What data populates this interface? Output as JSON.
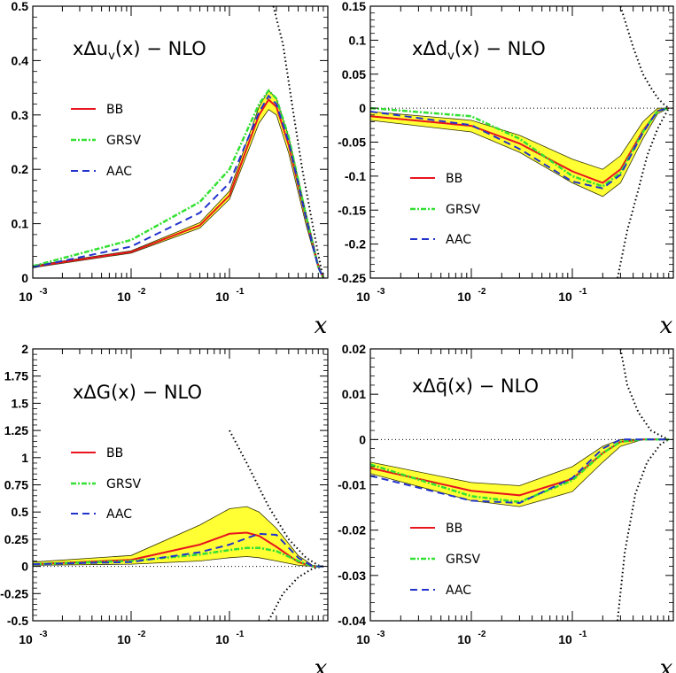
{
  "chart_data": [
    {
      "type": "line",
      "title": "xΔu_v(x) − NLO",
      "title_main": "xΔu",
      "title_sub": "v",
      "title_tail": "(x) − NLO",
      "xlabel": "x",
      "xscale": "log",
      "xlim": [
        0.001,
        1
      ],
      "ylim": [
        0,
        0.5
      ],
      "yticks": [
        "0",
        "0.1",
        "0.2",
        "0.3",
        "0.4",
        "0.5"
      ],
      "xticks": [
        {
          "base": "10",
          "exp": "-3"
        },
        {
          "base": "10",
          "exp": "-2"
        },
        {
          "base": "10",
          "exp": "-1"
        }
      ],
      "legend": [
        "BB",
        "GRSV",
        "AAC"
      ],
      "band": {
        "x": [
          0.001,
          0.01,
          0.05,
          0.1,
          0.2,
          0.25,
          0.3,
          0.4,
          0.6,
          0.8,
          0.9
        ],
        "lower": [
          0.019,
          0.046,
          0.092,
          0.145,
          0.285,
          0.31,
          0.3,
          0.23,
          0.098,
          0.018,
          0.0
        ],
        "upper": [
          0.023,
          0.05,
          0.102,
          0.16,
          0.315,
          0.345,
          0.33,
          0.26,
          0.12,
          0.027,
          0.0
        ]
      },
      "series": [
        {
          "name": "BB",
          "x": [
            0.001,
            0.01,
            0.05,
            0.1,
            0.2,
            0.25,
            0.3,
            0.4,
            0.6,
            0.8,
            0.9
          ],
          "y": [
            0.021,
            0.048,
            0.097,
            0.152,
            0.3,
            0.328,
            0.315,
            0.245,
            0.11,
            0.022,
            0.0
          ]
        },
        {
          "name": "GRSV",
          "x": [
            0.001,
            0.01,
            0.05,
            0.1,
            0.2,
            0.25,
            0.3,
            0.4,
            0.6,
            0.8,
            0.9
          ],
          "y": [
            0.022,
            0.07,
            0.14,
            0.2,
            0.32,
            0.345,
            0.33,
            0.26,
            0.115,
            0.02,
            0.0
          ]
        },
        {
          "name": "AAC",
          "x": [
            0.001,
            0.01,
            0.05,
            0.1,
            0.2,
            0.25,
            0.3,
            0.4,
            0.6,
            0.8,
            0.9
          ],
          "y": [
            0.02,
            0.058,
            0.12,
            0.175,
            0.305,
            0.335,
            0.32,
            0.25,
            0.11,
            0.02,
            0.0
          ]
        }
      ],
      "limit_curve": {
        "x": [
          0.28,
          0.35,
          0.45,
          0.55,
          0.65,
          0.75,
          0.85,
          0.9
        ],
        "y": [
          0.5,
          0.43,
          0.3,
          0.2,
          0.13,
          0.07,
          0.02,
          0.0
        ]
      },
      "limit_curve_neg": {
        "x": [
          0.8,
          0.85,
          0.9
        ],
        "y": [
          -0.01,
          -0.005,
          0.0
        ]
      }
    },
    {
      "type": "line",
      "title": "xΔd_v(x) − NLO",
      "title_main": "xΔd",
      "title_sub": "v",
      "title_tail": "(x) − NLO",
      "xlabel": "x",
      "xscale": "log",
      "xlim": [
        0.001,
        1
      ],
      "ylim": [
        -0.25,
        0.15
      ],
      "yticks": [
        "-0.25",
        "-0.2",
        "-0.15",
        "-0.1",
        "-0.05",
        "0",
        "0.05",
        "0.1",
        "0.15"
      ],
      "xticks": [
        {
          "base": "10",
          "exp": "-3"
        },
        {
          "base": "10",
          "exp": "-2"
        },
        {
          "base": "10",
          "exp": "-1"
        }
      ],
      "legend": [
        "BB",
        "GRSV",
        "AAC"
      ],
      "band": {
        "x": [
          0.001,
          0.01,
          0.03,
          0.1,
          0.2,
          0.3,
          0.5,
          0.7,
          0.9
        ],
        "lower": [
          -0.018,
          -0.035,
          -0.065,
          -0.11,
          -0.13,
          -0.11,
          -0.045,
          -0.008,
          0.0
        ],
        "upper": [
          -0.005,
          -0.018,
          -0.04,
          -0.075,
          -0.09,
          -0.07,
          -0.02,
          0.0,
          0.0
        ]
      },
      "series": [
        {
          "name": "BB",
          "x": [
            0.001,
            0.01,
            0.03,
            0.1,
            0.2,
            0.3,
            0.5,
            0.7,
            0.9
          ],
          "y": [
            -0.012,
            -0.026,
            -0.052,
            -0.093,
            -0.11,
            -0.09,
            -0.033,
            -0.004,
            0.0
          ]
        },
        {
          "name": "GRSV",
          "x": [
            0.001,
            0.01,
            0.03,
            0.1,
            0.2,
            0.3,
            0.5,
            0.7,
            0.9
          ],
          "y": [
            0.0,
            -0.012,
            -0.045,
            -0.1,
            -0.115,
            -0.095,
            -0.035,
            -0.004,
            0.0
          ]
        },
        {
          "name": "AAC",
          "x": [
            0.001,
            0.01,
            0.03,
            0.1,
            0.2,
            0.3,
            0.5,
            0.7,
            0.9
          ],
          "y": [
            -0.005,
            -0.025,
            -0.06,
            -0.108,
            -0.118,
            -0.098,
            -0.036,
            -0.004,
            0.0
          ]
        }
      ],
      "limit_curve": {
        "x": [
          0.3,
          0.4,
          0.5,
          0.6,
          0.7,
          0.8,
          0.9
        ],
        "y": [
          0.15,
          0.09,
          0.05,
          0.03,
          0.015,
          0.006,
          0.0
        ]
      },
      "limit_curve_neg": {
        "x": [
          0.28,
          0.35,
          0.45,
          0.55,
          0.7,
          0.9
        ],
        "y": [
          -0.25,
          -0.18,
          -0.12,
          -0.07,
          -0.03,
          0.0
        ]
      }
    },
    {
      "type": "line",
      "title": "xΔG(x) − NLO",
      "title_main": "xΔG",
      "title_sub": "",
      "title_tail": "(x) − NLO",
      "xlabel": "x",
      "xscale": "log",
      "xlim": [
        0.001,
        1
      ],
      "ylim": [
        -0.5,
        2
      ],
      "yticks": [
        "-0.5",
        "-0.25",
        "0",
        "0.25",
        "0.5",
        "0.75",
        "1",
        "1.25",
        "1.5",
        "1.75",
        "2"
      ],
      "xticks": [
        {
          "base": "10",
          "exp": "-3"
        },
        {
          "base": "10",
          "exp": "-2"
        },
        {
          "base": "10",
          "exp": "-1"
        }
      ],
      "legend": [
        "BB",
        "GRSV",
        "AAC"
      ],
      "band": {
        "x": [
          0.001,
          0.01,
          0.05,
          0.1,
          0.15,
          0.2,
          0.3,
          0.5,
          0.7,
          0.9
        ],
        "lower": [
          0.01,
          0.02,
          0.05,
          0.08,
          0.09,
          0.08,
          0.05,
          0.01,
          0.0,
          0.0
        ],
        "upper": [
          0.04,
          0.1,
          0.38,
          0.53,
          0.55,
          0.5,
          0.35,
          0.1,
          0.01,
          0.0
        ]
      },
      "series": [
        {
          "name": "BB",
          "x": [
            0.001,
            0.01,
            0.05,
            0.1,
            0.15,
            0.2,
            0.3,
            0.5,
            0.7,
            0.9
          ],
          "y": [
            0.02,
            0.06,
            0.2,
            0.3,
            0.31,
            0.28,
            0.18,
            0.04,
            0.0,
            0.0
          ]
        },
        {
          "name": "GRSV",
          "x": [
            0.001,
            0.01,
            0.05,
            0.1,
            0.15,
            0.2,
            0.3,
            0.5,
            0.7,
            0.9
          ],
          "y": [
            0.02,
            0.05,
            0.11,
            0.15,
            0.17,
            0.17,
            0.14,
            0.05,
            0.0,
            0.0
          ]
        },
        {
          "name": "AAC",
          "x": [
            0.001,
            0.01,
            0.05,
            0.1,
            0.15,
            0.2,
            0.3,
            0.5,
            0.7,
            0.9
          ],
          "y": [
            0.02,
            0.04,
            0.13,
            0.2,
            0.26,
            0.3,
            0.29,
            0.08,
            0.0,
            0.0
          ]
        }
      ],
      "limit_curve": {
        "x": [
          0.1,
          0.15,
          0.25,
          0.4,
          0.6,
          0.8,
          0.9
        ],
        "y": [
          1.25,
          0.95,
          0.55,
          0.25,
          0.08,
          0.01,
          0.0
        ]
      },
      "limit_curve_neg": {
        "x": [
          0.25,
          0.35,
          0.5,
          0.7,
          0.9
        ],
        "y": [
          -0.5,
          -0.25,
          -0.1,
          -0.02,
          0.0
        ]
      }
    },
    {
      "type": "line",
      "title": "xΔq̄(x) − NLO",
      "title_main": "xΔq̄",
      "title_sub": "",
      "title_tail": "(x) − NLO",
      "xlabel": "x",
      "xscale": "log",
      "xlim": [
        0.001,
        1
      ],
      "ylim": [
        -0.04,
        0.02
      ],
      "yticks": [
        "-0.04",
        "-0.03",
        "-0.02",
        "-0.01",
        "0",
        "0.01",
        "0.02"
      ],
      "xticks": [
        {
          "base": "10",
          "exp": "-3"
        },
        {
          "base": "10",
          "exp": "-2"
        },
        {
          "base": "10",
          "exp": "-1"
        }
      ],
      "legend": [
        "BB",
        "GRSV",
        "AAC"
      ],
      "band": {
        "x": [
          0.001,
          0.01,
          0.03,
          0.1,
          0.2,
          0.3,
          0.5,
          0.9
        ],
        "lower": [
          -0.0075,
          -0.0135,
          -0.0148,
          -0.0115,
          -0.005,
          -0.0015,
          0.0,
          0.0
        ],
        "upper": [
          -0.005,
          -0.0095,
          -0.0102,
          -0.006,
          -0.0015,
          0.0,
          0.0,
          0.0
        ]
      },
      "series": [
        {
          "name": "BB",
          "x": [
            0.001,
            0.01,
            0.03,
            0.1,
            0.2,
            0.3,
            0.5,
            0.9
          ],
          "y": [
            -0.0063,
            -0.0113,
            -0.0123,
            -0.0087,
            -0.003,
            -0.0005,
            0.0,
            0.0
          ]
        },
        {
          "name": "GRSV",
          "x": [
            0.001,
            0.01,
            0.03,
            0.1,
            0.2,
            0.3,
            0.5,
            0.9
          ],
          "y": [
            -0.0055,
            -0.0125,
            -0.0138,
            -0.009,
            -0.003,
            -0.0005,
            0.0,
            0.0
          ]
        },
        {
          "name": "AAC",
          "x": [
            0.001,
            0.01,
            0.03,
            0.1,
            0.2,
            0.3,
            0.5,
            0.9
          ],
          "y": [
            -0.008,
            -0.0135,
            -0.014,
            -0.0085,
            -0.002,
            0.0,
            0.0,
            0.0
          ]
        }
      ],
      "limit_curve": {
        "x": [
          0.3,
          0.35,
          0.45,
          0.6,
          0.8,
          0.9
        ],
        "y": [
          0.02,
          0.012,
          0.006,
          0.002,
          0.0005,
          0.0
        ]
      },
      "limit_curve_neg": {
        "x": [
          0.28,
          0.33,
          0.42,
          0.55,
          0.75,
          0.9
        ],
        "y": [
          -0.04,
          -0.025,
          -0.012,
          -0.005,
          -0.001,
          0.0
        ]
      }
    }
  ],
  "colors": {
    "BB": "#e8141e",
    "GRSV": "#33e033",
    "AAC": "#2233cc",
    "band": "#ffff33",
    "band_edge": "#333300"
  }
}
